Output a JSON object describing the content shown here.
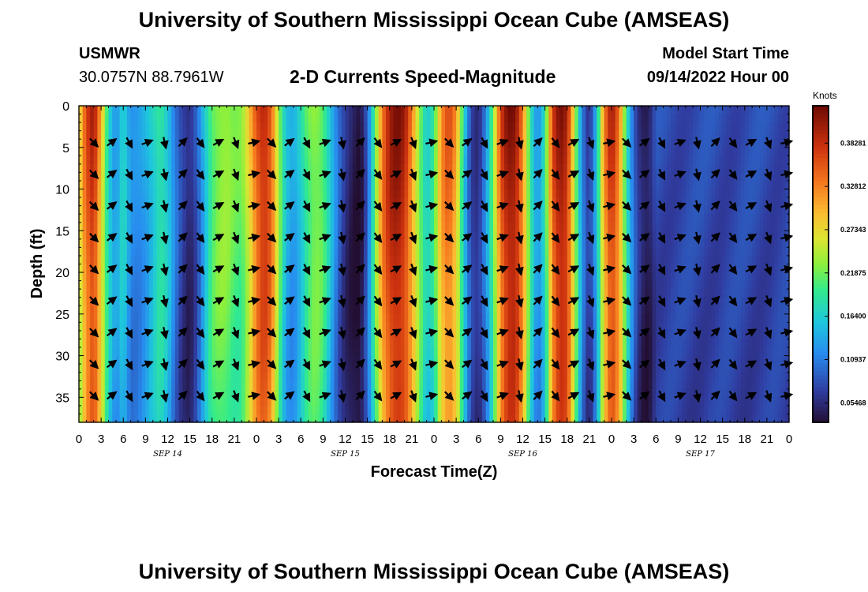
{
  "title": "University of Southern Mississippi Ocean Cube (AMSEAS)",
  "title_repeat": "University of Southern Mississippi Ocean Cube (AMSEAS)",
  "station": {
    "name": "USMWR",
    "coords": "30.0757N  88.7961W"
  },
  "subtitle": "2-D Currents Speed-Magnitude",
  "model_start": {
    "label": "Model Start Time",
    "value": "09/14/2022 Hour 00"
  },
  "chart_data": {
    "type": "heatmap",
    "xlabel": "Forecast Time(Z)",
    "ylabel": "Depth (ft)",
    "x_tick_labels": [
      "0",
      "3",
      "6",
      "9",
      "12",
      "15",
      "18",
      "21",
      "0",
      "3",
      "6",
      "9",
      "12",
      "15",
      "18",
      "21",
      "0",
      "3",
      "6",
      "9",
      "12",
      "15",
      "18",
      "21",
      "0",
      "3",
      "6",
      "9",
      "12",
      "15",
      "18",
      "21",
      "0"
    ],
    "x_hours_range": [
      0,
      96
    ],
    "day_labels": [
      {
        "label": "SEP 14",
        "hour": 12
      },
      {
        "label": "SEP 15",
        "hour": 36
      },
      {
        "label": "SEP 16",
        "hour": 60
      },
      {
        "label": "SEP 17",
        "hour": 84
      }
    ],
    "y_ticks": [
      0,
      5,
      10,
      15,
      20,
      25,
      30,
      35
    ],
    "ylim": [
      38,
      0
    ],
    "colorbar": {
      "label": "Knots",
      "range": [
        0.03,
        0.43
      ],
      "tick_values": [
        0.38281,
        0.32812,
        0.27343,
        0.21875,
        0.164,
        0.10937,
        0.05468
      ],
      "tick_labels": [
        "0.38281",
        "0.32812",
        "0.27343",
        "0.21875",
        "0.16400",
        "0.10937",
        "0.05468"
      ]
    },
    "speed_knots_by_hour": [
      [
        0,
        0.26
      ],
      [
        1,
        0.36
      ],
      [
        2,
        0.4
      ],
      [
        3,
        0.3
      ],
      [
        4,
        0.18
      ],
      [
        5,
        0.13
      ],
      [
        6,
        0.18
      ],
      [
        7,
        0.12
      ],
      [
        8,
        0.12
      ],
      [
        9,
        0.14
      ],
      [
        10,
        0.17
      ],
      [
        11,
        0.2
      ],
      [
        12,
        0.17
      ],
      [
        13,
        0.11
      ],
      [
        14,
        0.07
      ],
      [
        15,
        0.05
      ],
      [
        16,
        0.09
      ],
      [
        17,
        0.16
      ],
      [
        18,
        0.22
      ],
      [
        19,
        0.24
      ],
      [
        20,
        0.24
      ],
      [
        21,
        0.22
      ],
      [
        22,
        0.22
      ],
      [
        23,
        0.28
      ],
      [
        24,
        0.36
      ],
      [
        25,
        0.4
      ],
      [
        26,
        0.36
      ],
      [
        27,
        0.24
      ],
      [
        28,
        0.15
      ],
      [
        29,
        0.13
      ],
      [
        30,
        0.17
      ],
      [
        31,
        0.22
      ],
      [
        32,
        0.24
      ],
      [
        33,
        0.22
      ],
      [
        34,
        0.16
      ],
      [
        35,
        0.1
      ],
      [
        36,
        0.06
      ],
      [
        37,
        0.04
      ],
      [
        38,
        0.03
      ],
      [
        39,
        0.1
      ],
      [
        40,
        0.22
      ],
      [
        41,
        0.34
      ],
      [
        42,
        0.4
      ],
      [
        43,
        0.42
      ],
      [
        44,
        0.4
      ],
      [
        45,
        0.33
      ],
      [
        46,
        0.24
      ],
      [
        47,
        0.17
      ],
      [
        48,
        0.2
      ],
      [
        49,
        0.32
      ],
      [
        50,
        0.36
      ],
      [
        51,
        0.31
      ],
      [
        52,
        0.18
      ],
      [
        53,
        0.08
      ],
      [
        54,
        0.06
      ],
      [
        55,
        0.12
      ],
      [
        56,
        0.22
      ],
      [
        57,
        0.36
      ],
      [
        58,
        0.42
      ],
      [
        59,
        0.42
      ],
      [
        60,
        0.34
      ],
      [
        61,
        0.2
      ],
      [
        62,
        0.12
      ],
      [
        63,
        0.18
      ],
      [
        64,
        0.36
      ],
      [
        65,
        0.42
      ],
      [
        66,
        0.4
      ],
      [
        67,
        0.26
      ],
      [
        68,
        0.12
      ],
      [
        69,
        0.06
      ],
      [
        70,
        0.15
      ],
      [
        71,
        0.32
      ],
      [
        72,
        0.4
      ],
      [
        73,
        0.34
      ],
      [
        74,
        0.2
      ],
      [
        75,
        0.1
      ],
      [
        76,
        0.05
      ],
      [
        77,
        0.04
      ],
      [
        78,
        0.08
      ]
    ]
  }
}
